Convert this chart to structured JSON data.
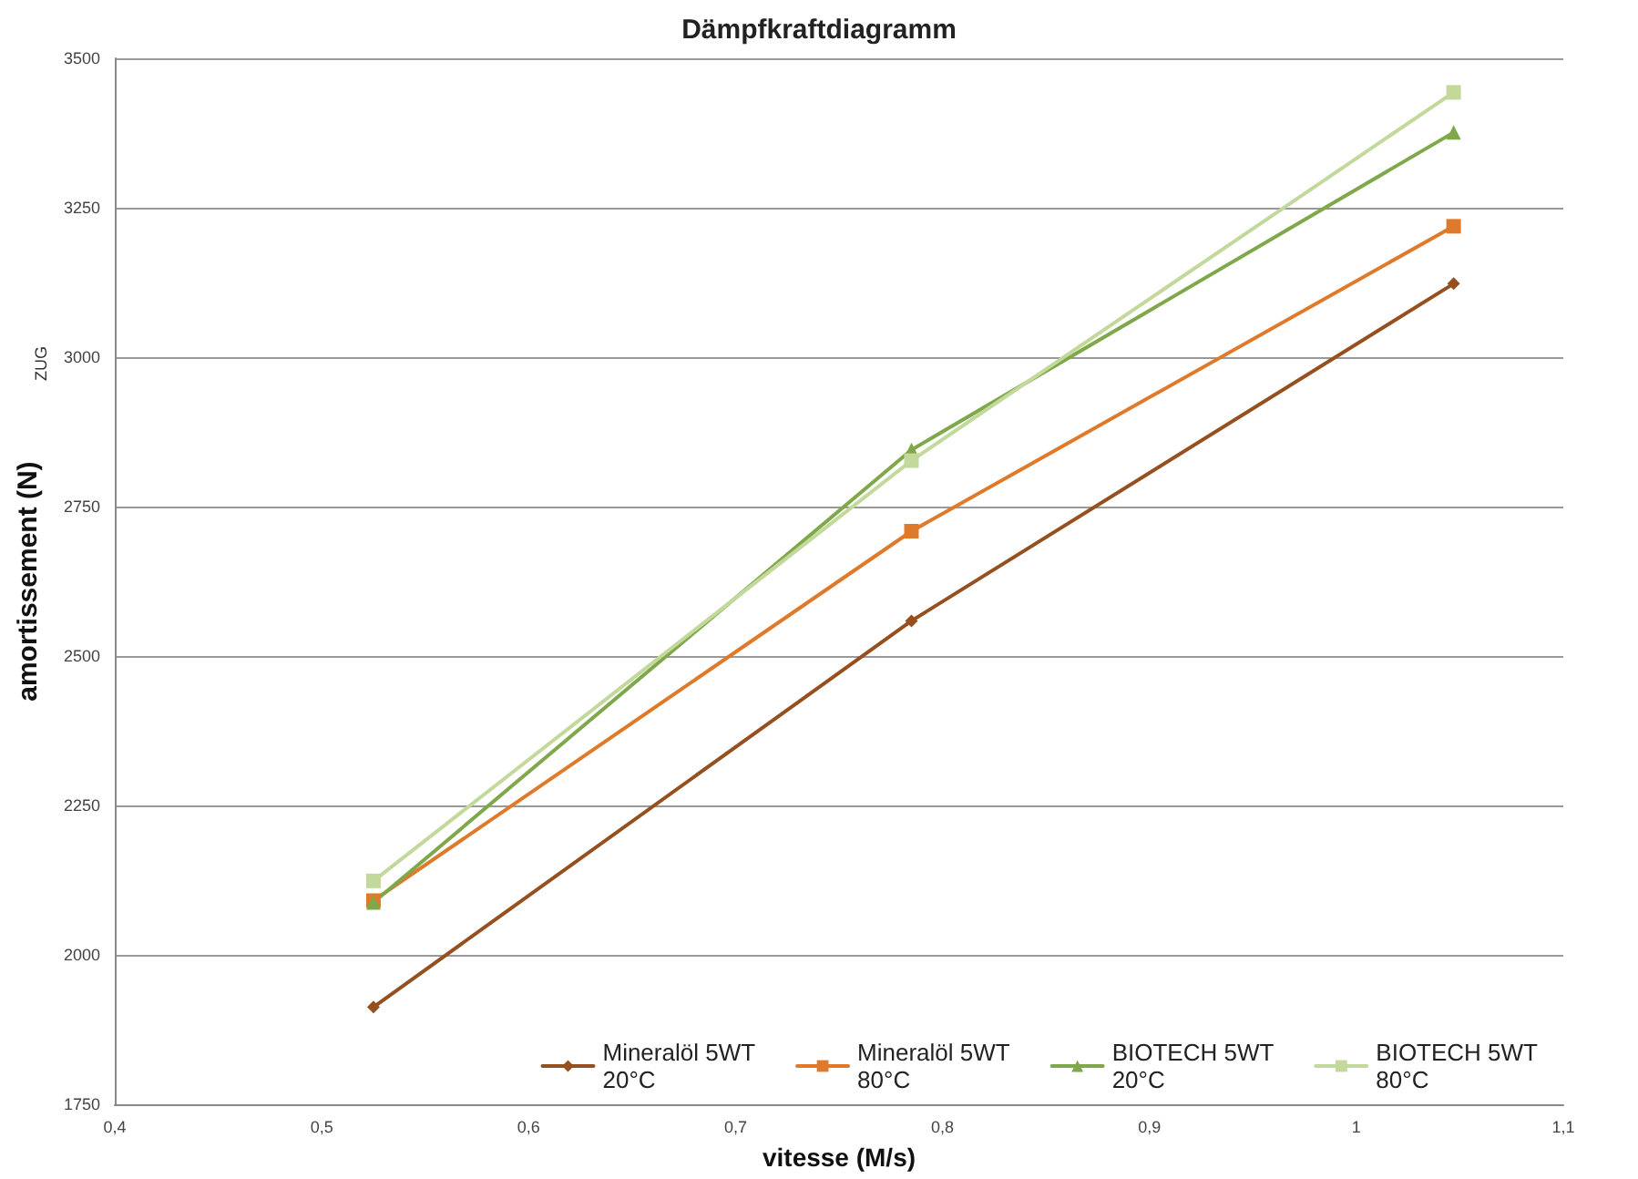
{
  "chart_data": {
    "type": "line",
    "title": "Dämpfkraftdiagramm",
    "xlabel": "vitesse (M/s)",
    "ylabel": "amortissement (N)",
    "annotations": [
      "ZUG"
    ],
    "x": [
      0.525,
      0.785,
      1.047
    ],
    "series": [
      {
        "name": "Mineralöl 5WT\n20°C",
        "color": "#96501f",
        "marker": "diamond",
        "values": [
          1913,
          2559,
          3123
        ]
      },
      {
        "name": "Mineralöl 5WT\n80°C",
        "color": "#e07a2b",
        "marker": "square",
        "values": [
          2091,
          2709,
          3219
        ]
      },
      {
        "name": "BIOTECH 5WT\n20°C",
        "color": "#7fa84a",
        "marker": "triangle",
        "values": [
          2088,
          2845,
          3376
        ]
      },
      {
        "name": "BIOTECH 5WT\n80°C",
        "color": "#c3d89b",
        "marker": "square",
        "values": [
          2124,
          2827,
          3443
        ]
      }
    ],
    "xlim": [
      0.4,
      1.1
    ],
    "xticks": [
      {
        "value": 0.4,
        "label": "0,4"
      },
      {
        "value": 0.5,
        "label": "0,5"
      },
      {
        "value": 0.6,
        "label": "0,6"
      },
      {
        "value": 0.7,
        "label": "0,7"
      },
      {
        "value": 0.8,
        "label": "0,8"
      },
      {
        "value": 0.9,
        "label": "0,9"
      },
      {
        "value": 1,
        "label": "1"
      },
      {
        "value": 1.1,
        "label": "1,1"
      }
    ],
    "ylim": [
      1750,
      3500
    ],
    "yticks": [
      1750,
      2000,
      2250,
      2500,
      2750,
      3000,
      3250,
      3500
    ],
    "grid": "y",
    "legend": "bottom right",
    "line_style": "solid"
  }
}
